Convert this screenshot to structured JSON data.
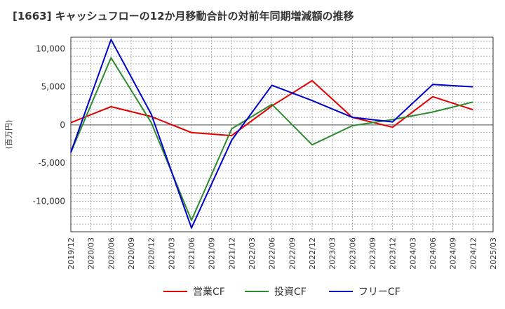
{
  "title": "[1663]  キャッシュフローの12か月移動合計の対前年同期増減額の推移",
  "chart_data": {
    "type": "line",
    "title": "[1663]  キャッシュフローの12か月移動合計の対前年同期増減額の推移",
    "ylabel": "(百万円)",
    "xlabel": "",
    "ylim": [
      -14000,
      11500
    ],
    "yticks": [
      10000,
      5000,
      0,
      -5000,
      -10000
    ],
    "ytick_labels": [
      "10,000",
      "5,000",
      "0",
      "-5,000",
      "-10,000"
    ],
    "x_tick_labels": [
      "2019/12",
      "2020/03",
      "2020/06",
      "2020/09",
      "2020/12",
      "2021/03",
      "2021/06",
      "2021/09",
      "2021/12",
      "2022/03",
      "2022/06",
      "2022/09",
      "2022/12",
      "2023/03",
      "2023/06",
      "2023/09",
      "2023/12",
      "2024/03",
      "2024/06",
      "2024/09",
      "2024/12",
      "2025/03"
    ],
    "grid": true,
    "legend_position": "bottom",
    "series": [
      {
        "name": "営業CF",
        "color": "#e00000",
        "points": [
          {
            "x": "2019/12",
            "y": 300
          },
          {
            "x": "2020/06",
            "y": 2400
          },
          {
            "x": "2020/12",
            "y": 1100
          },
          {
            "x": "2021/06",
            "y": -1000
          },
          {
            "x": "2021/12",
            "y": -1400
          },
          {
            "x": "2022/06",
            "y": 2500
          },
          {
            "x": "2022/12",
            "y": 5800
          },
          {
            "x": "2023/06",
            "y": 1000
          },
          {
            "x": "2023/12",
            "y": -300
          },
          {
            "x": "2024/06",
            "y": 3700
          },
          {
            "x": "2024/12",
            "y": 2000
          }
        ]
      },
      {
        "name": "投資CF",
        "color": "#2e8b2e",
        "points": [
          {
            "x": "2019/12",
            "y": -3600
          },
          {
            "x": "2020/06",
            "y": 8800
          },
          {
            "x": "2020/12",
            "y": 300
          },
          {
            "x": "2021/06",
            "y": -12500
          },
          {
            "x": "2021/12",
            "y": -500
          },
          {
            "x": "2022/06",
            "y": 2700
          },
          {
            "x": "2022/12",
            "y": -2600
          },
          {
            "x": "2023/06",
            "y": -100
          },
          {
            "x": "2023/12",
            "y": 700
          },
          {
            "x": "2024/06",
            "y": 1700
          },
          {
            "x": "2024/12",
            "y": 3000
          }
        ]
      },
      {
        "name": "フリーCF",
        "color": "#0000cc",
        "points": [
          {
            "x": "2019/12",
            "y": -3600
          },
          {
            "x": "2020/06",
            "y": 11200
          },
          {
            "x": "2020/12",
            "y": 1400
          },
          {
            "x": "2021/06",
            "y": -13500
          },
          {
            "x": "2021/12",
            "y": -2000
          },
          {
            "x": "2022/06",
            "y": 5200
          },
          {
            "x": "2022/12",
            "y": 3200
          },
          {
            "x": "2023/06",
            "y": 1000
          },
          {
            "x": "2023/12",
            "y": 400
          },
          {
            "x": "2024/06",
            "y": 5300
          },
          {
            "x": "2024/12",
            "y": 5000
          }
        ]
      }
    ]
  }
}
